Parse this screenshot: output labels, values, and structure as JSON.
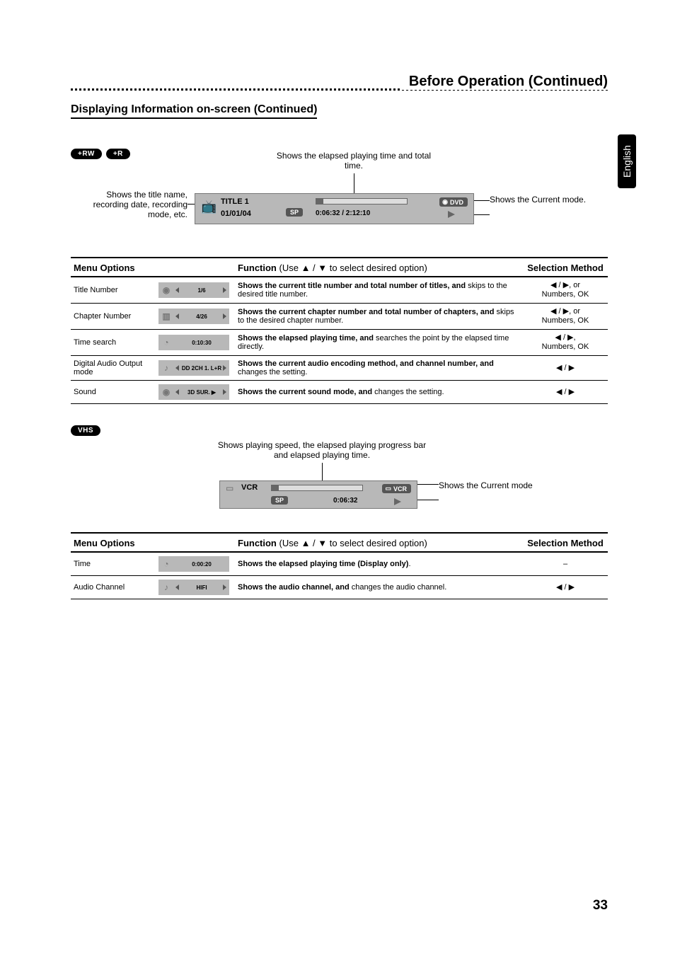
{
  "page_title": "Before Operation (Continued)",
  "section_title": "Displaying Information on-screen (Continued)",
  "side_tab": "English",
  "badges": {
    "rw": "+RW",
    "r": "+R",
    "vhs": "VHS"
  },
  "dvd_diagram": {
    "elapsed_note": "Shows the elapsed playing time and total time.",
    "tname_note": "Shows the title name, recording date, recording mode, etc.",
    "cur_mode_note": "Shows the Current mode.",
    "title": "TITLE  1",
    "date": "01/01/04",
    "sp": "SP",
    "time": "0:06:32   /   2:12:10",
    "dvd": "DVD"
  },
  "headers": {
    "menu": "Menu Options",
    "func_lead": "Function",
    "func_hint": "(Use ▲ / ▼ to select desired option)",
    "sel": "Selection Method"
  },
  "rows": [
    {
      "opt": "Title Number",
      "chip": "1/6",
      "cicon": "◉",
      "func_b": "Shows the current title number and total number of titles, and ",
      "func_r": "skips to the desired title number.",
      "sel": "◀ / ▶, or\nNumbers, OK",
      "lr": true
    },
    {
      "opt": "Chapter Number",
      "chip": "4/26",
      "cicon": "▥",
      "func_b": "Shows the current chapter number and total number of chapters, and ",
      "func_r": "skips to the desired chapter number.",
      "sel": "◀ / ▶, or\nNumbers, OK",
      "lr": true
    },
    {
      "opt": "Time search",
      "chip": "0:10:30",
      "cicon": "◔",
      "func_b": "Shows the elapsed playing time, and",
      "func_r": " searches the point by the elapsed time directly.",
      "sel": "◀ / ▶,\nNumbers, OK",
      "lr": false
    },
    {
      "opt": "Digital Audio Output mode",
      "chip": "DD 2CH\n1. L+R",
      "cicon": "♪",
      "func_b": "Shows the current audio encoding method, and channel number, and ",
      "func_r": "changes the setting.",
      "sel": "◀ / ▶",
      "lr": true
    },
    {
      "opt": "Sound",
      "chip": "3D SUR. ▶",
      "cicon": "◉",
      "func_b": "Shows the current sound mode, and",
      "func_r": " changes the setting.",
      "sel": "◀ / ▶",
      "lr": true
    }
  ],
  "vhs_diagram": {
    "note": "Shows playing speed,  the elapsed playing progress bar and elapsed playing time.",
    "vcr": "VCR",
    "sp": "SP",
    "time": "0:06:32",
    "vcr_chip": "VCR",
    "cur_mode_note": "Shows the Current mode"
  },
  "vhs_rows": [
    {
      "opt": "Time",
      "chip": "0:00:20",
      "cicon": "◔",
      "func_b": "Shows the elapsed playing time (Display only)",
      "func_r": ".",
      "sel": "–",
      "lr": false
    },
    {
      "opt": "Audio Channel",
      "chip": "HIFI",
      "cicon": "♪",
      "func_b": "Shows the audio channel, and",
      "func_r": " changes the audio channel.",
      "sel": "◀ / ▶",
      "lr": true
    }
  ],
  "page_number": "33"
}
